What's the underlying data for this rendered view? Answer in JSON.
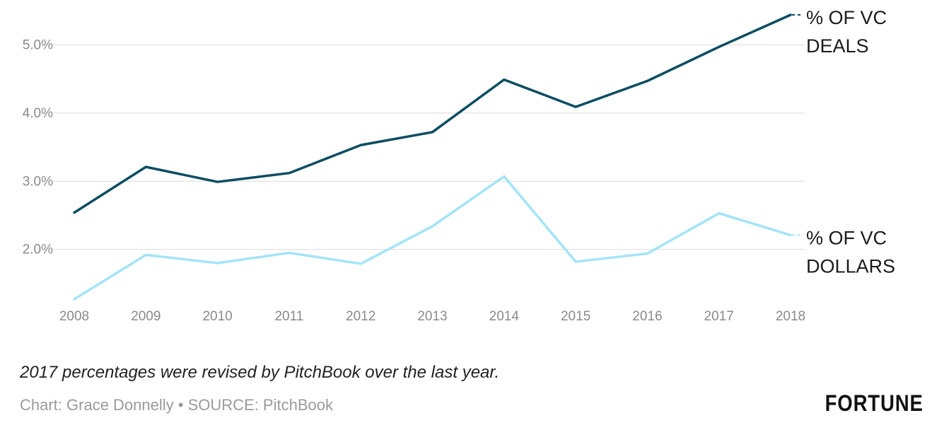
{
  "chart_data": {
    "type": "line",
    "x": [
      "2008",
      "2009",
      "2010",
      "2011",
      "2012",
      "2013",
      "2014",
      "2015",
      "2016",
      "2017",
      "2018"
    ],
    "yticks": [
      "2.0%",
      "3.0%",
      "4.0%",
      "5.0%"
    ],
    "ylim": [
      1.25,
      5.45
    ],
    "grid": true,
    "series": [
      {
        "label_lines": [
          "% OF VC",
          "DEALS"
        ],
        "color": "#0b4d62",
        "values": [
          2.54,
          3.21,
          2.99,
          3.12,
          3.53,
          3.72,
          4.49,
          4.09,
          4.47,
          4.97,
          5.44
        ]
      },
      {
        "label_lines": [
          "% OF VC",
          "DOLLARS"
        ],
        "color": "#a3e4f7",
        "values": [
          1.27,
          1.92,
          1.8,
          1.95,
          1.79,
          2.34,
          3.07,
          1.82,
          1.94,
          2.53,
          2.21
        ]
      }
    ]
  },
  "footer": {
    "note": "2017 percentages were revised by PitchBook over the last year.",
    "source": "Chart: Grace Donnelly • SOURCE: PitchBook",
    "logo": "FORTUNE"
  }
}
